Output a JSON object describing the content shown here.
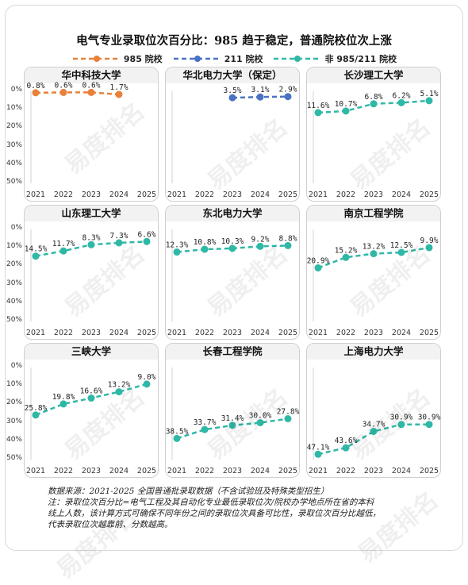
{
  "title": "电气专业录取位次百分比：985 趋于稳定，普通院校位次上涨",
  "legend": [
    {
      "name": "985 院校",
      "color": "#e8813a"
    },
    {
      "name": "211 院校",
      "color": "#4a72c4"
    },
    {
      "name": "非 985/211 院校",
      "color": "#2fb8a6"
    }
  ],
  "chart_data": [
    {
      "type": "line",
      "title": "华中科技大学",
      "group": "985 院校",
      "x": [
        "2021",
        "2022",
        "2023",
        "2024",
        "2025"
      ],
      "values": [
        0.8,
        0.6,
        0.6,
        1.7,
        null
      ],
      "labels": [
        "0.8%",
        "0.6%",
        "0.6%",
        "1.7%",
        ""
      ],
      "yticks": [
        "0%",
        "10%",
        "20%",
        "30%",
        "40%",
        "50%"
      ],
      "ylim": [
        0,
        50
      ],
      "yreverse": true
    },
    {
      "type": "line",
      "title": "华北电力大学（保定）",
      "group": "211 院校",
      "x": [
        "2021",
        "2022",
        "2023",
        "2024",
        "2025"
      ],
      "values": [
        null,
        null,
        3.5,
        3.1,
        2.9
      ],
      "labels": [
        "",
        "",
        "3.5%",
        "3.1%",
        "2.9%"
      ],
      "yticks": [
        "",
        "",
        "",
        "",
        "",
        ""
      ],
      "ylim": [
        0,
        50
      ],
      "yreverse": true
    },
    {
      "type": "line",
      "title": "长沙理工大学",
      "group": "非 985/211 院校",
      "x": [
        "2021",
        "2022",
        "2023",
        "2024",
        "2025"
      ],
      "values": [
        11.6,
        10.7,
        6.8,
        6.2,
        5.1
      ],
      "labels": [
        "11.6%",
        "10.7%",
        "6.8%",
        "6.2%",
        "5.1%"
      ],
      "yticks": [
        "",
        "",
        "",
        "",
        "",
        ""
      ],
      "ylim": [
        0,
        50
      ],
      "yreverse": true
    },
    {
      "type": "line",
      "title": "山东理工大学",
      "group": "非 985/211 院校",
      "x": [
        "2021",
        "2022",
        "2023",
        "2024",
        "2025"
      ],
      "values": [
        14.5,
        11.7,
        8.3,
        7.3,
        6.6
      ],
      "labels": [
        "14.5%",
        "11.7%",
        "8.3%",
        "7.3%",
        "6.6%"
      ],
      "yticks": [
        "0%",
        "10%",
        "20%",
        "30%",
        "40%",
        "50%"
      ],
      "ylim": [
        0,
        50
      ],
      "yreverse": true
    },
    {
      "type": "line",
      "title": "东北电力大学",
      "group": "非 985/211 院校",
      "x": [
        "2021",
        "2022",
        "2023",
        "2024",
        "2025"
      ],
      "values": [
        12.3,
        10.8,
        10.3,
        9.2,
        8.8
      ],
      "labels": [
        "12.3%",
        "10.8%",
        "10.3%",
        "9.2%",
        "8.8%"
      ],
      "yticks": [
        "",
        "",
        "",
        "",
        "",
        ""
      ],
      "ylim": [
        0,
        50
      ],
      "yreverse": true
    },
    {
      "type": "line",
      "title": "南京工程学院",
      "group": "非 985/211 院校",
      "x": [
        "2021",
        "2022",
        "2023",
        "2024",
        "2025"
      ],
      "values": [
        20.9,
        15.2,
        13.2,
        12.5,
        9.9
      ],
      "labels": [
        "20.9%",
        "15.2%",
        "13.2%",
        "12.5%",
        "9.9%"
      ],
      "yticks": [
        "",
        "",
        "",
        "",
        "",
        ""
      ],
      "ylim": [
        0,
        50
      ],
      "yreverse": true
    },
    {
      "type": "line",
      "title": "三峡大学",
      "group": "非 985/211 院校",
      "x": [
        "2021",
        "2022",
        "2023",
        "2024",
        "2025"
      ],
      "values": [
        25.8,
        19.8,
        16.6,
        13.2,
        9.0
      ],
      "labels": [
        "25.8%",
        "19.8%",
        "16.6%",
        "13.2%",
        "9.0%"
      ],
      "yticks": [
        "0%",
        "10%",
        "20%",
        "30%",
        "40%",
        "50%"
      ],
      "ylim": [
        0,
        50
      ],
      "yreverse": true
    },
    {
      "type": "line",
      "title": "长春工程学院",
      "group": "非 985/211 院校",
      "x": [
        "2021",
        "2022",
        "2023",
        "2024",
        "2025"
      ],
      "values": [
        38.5,
        33.7,
        31.4,
        30.0,
        27.8
      ],
      "labels": [
        "38.5%",
        "33.7%",
        "31.4%",
        "30.0%",
        "27.8%"
      ],
      "yticks": [
        "",
        "",
        "",
        "",
        "",
        ""
      ],
      "ylim": [
        0,
        50
      ],
      "yreverse": true
    },
    {
      "type": "line",
      "title": "上海电力大学",
      "group": "非 985/211 院校",
      "x": [
        "2021",
        "2022",
        "2023",
        "2024",
        "2025"
      ],
      "values": [
        47.1,
        43.6,
        34.7,
        30.9,
        30.9
      ],
      "labels": [
        "47.1%",
        "43.6%",
        "34.7%",
        "30.9%",
        "30.9%"
      ],
      "yticks": [
        "",
        "",
        "",
        "",
        "",
        ""
      ],
      "ylim": [
        0,
        50
      ],
      "yreverse": true
    }
  ],
  "footnote": {
    "line1": "数据来源：2021-2025 全国普通批录取数据（不含试验班及特殊类型招生）",
    "line2": "注：录取位次百分比=电气工程及其自动化专业最低录取位次/院校办学地点所在省的本科",
    "line3": "线上人数，该计算方式可确保不同年份之间的录取位次具备可比性，录取位次百分比越低，",
    "line4": "代表录取位次越靠前、分数越高。"
  },
  "watermark": {
    "text": "易度排名",
    "subtext": "DU Ranking.cn"
  }
}
